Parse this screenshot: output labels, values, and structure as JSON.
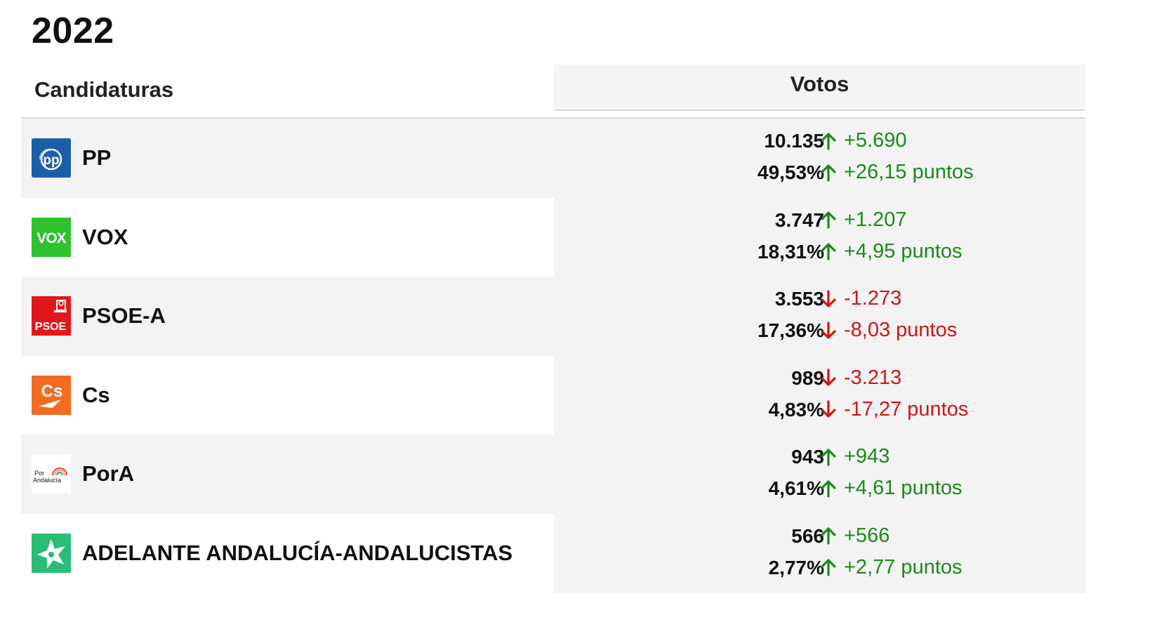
{
  "title": "2022",
  "headers": {
    "candidaturas": "Candidaturas",
    "votos": "Votos"
  },
  "colors": {
    "up": "#1a8a1a",
    "down": "#d11414"
  },
  "parties": [
    {
      "name": "PP",
      "logo": "pp-logo-icon",
      "logo_text": "pp",
      "votes": "10.135",
      "pct": "49,53%",
      "votes_delta": "+5.690",
      "pct_delta": "+26,15 puntos",
      "trend": "up"
    },
    {
      "name": "VOX",
      "logo": "vox-logo-icon",
      "logo_text": "VOX",
      "votes": "3.747",
      "pct": "18,31%",
      "votes_delta": "+1.207",
      "pct_delta": "+4,95 puntos",
      "trend": "up"
    },
    {
      "name": "PSOE-A",
      "logo": "psoe-logo-icon",
      "logo_text": "PSOE",
      "votes": "3.553",
      "pct": "17,36%",
      "votes_delta": "-1.273",
      "pct_delta": "-8,03 puntos",
      "trend": "down"
    },
    {
      "name": "Cs",
      "logo": "cs-logo-icon",
      "logo_text": "Cs",
      "votes": "989",
      "pct": "4,83%",
      "votes_delta": "-3.213",
      "pct_delta": "-17,27 puntos",
      "trend": "down"
    },
    {
      "name": "PorA",
      "logo": "pora-logo-icon",
      "logo_text": "Por Andalucía",
      "votes": "943",
      "pct": "4,61%",
      "votes_delta": "+943",
      "pct_delta": "+4,61 puntos",
      "trend": "up"
    },
    {
      "name": "ADELANTE ANDALUCÍA-ANDALUCISTAS",
      "logo": "adelante-logo-icon",
      "logo_text": "",
      "votes": "566",
      "pct": "2,77%",
      "votes_delta": "+566",
      "pct_delta": "+2,77 puntos",
      "trend": "up"
    }
  ]
}
